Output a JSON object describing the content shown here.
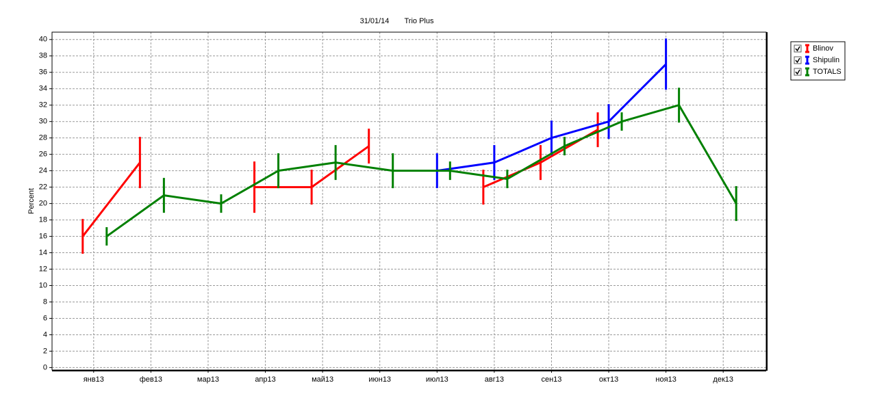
{
  "chart_data": {
    "type": "line",
    "title": "31/01/14",
    "subtitle": "Trio Plus",
    "y_label": "Percent",
    "categories": [
      "янв13",
      "фев13",
      "мар13",
      "апр13",
      "май13",
      "июн13",
      "июл13",
      "авг13",
      "сен13",
      "окт13",
      "ноя13",
      "дек13"
    ],
    "series": [
      {
        "name": "Blinov",
        "color": "#ff0000",
        "values": [
          16,
          25,
          null,
          22,
          22,
          27,
          null,
          22,
          25,
          29,
          null,
          null
        ],
        "errors": [
          2,
          3,
          null,
          3,
          2,
          2,
          null,
          2,
          2,
          2,
          null,
          null
        ]
      },
      {
        "name": "Shipulin",
        "color": "#0000ff",
        "values": [
          null,
          null,
          null,
          null,
          null,
          null,
          24,
          25,
          28,
          30,
          37,
          null
        ],
        "errors": [
          null,
          null,
          null,
          null,
          null,
          null,
          2,
          2,
          2,
          2,
          3,
          null
        ]
      },
      {
        "name": "TOTALS",
        "color": "#008000",
        "values": [
          16,
          21,
          20,
          24,
          25,
          24,
          24,
          23,
          27,
          30,
          32,
          20
        ],
        "errors": [
          1,
          2,
          1,
          2,
          2,
          2,
          1,
          1,
          1,
          1,
          2,
          2
        ]
      }
    ],
    "ylim": [
      -0.3,
      40.9
    ],
    "yticks": [
      0,
      2,
      4,
      6,
      8,
      10,
      12,
      14,
      16,
      18,
      20,
      22,
      24,
      26,
      28,
      30,
      32,
      34,
      36,
      38,
      40
    ],
    "grid": true,
    "legend": "right"
  }
}
